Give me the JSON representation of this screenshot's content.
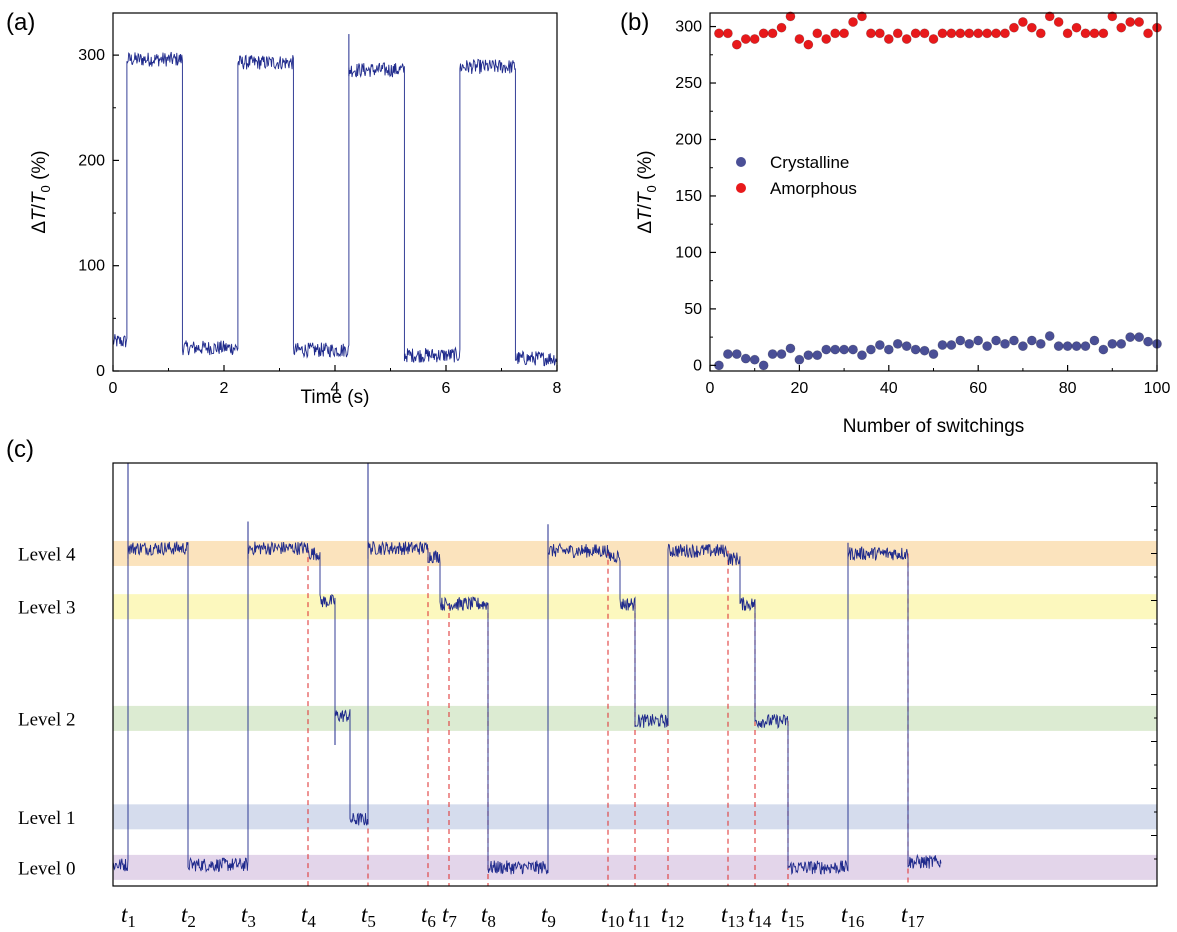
{
  "colors": {
    "trace": "#1f2a8c",
    "amorphous": "#e8191b",
    "crystalline": "#4a4f96",
    "marker_line": "#e03c3c",
    "level4": "#fbe3bd",
    "level3": "#fcf8be",
    "level2": "#dcebd2",
    "level1": "#d5dced",
    "level0": "#e3d5ea"
  },
  "chart_data": [
    {
      "id": "a",
      "type": "line",
      "panel_label": "(a)",
      "xlabel": "Time (s)",
      "ylabel_parts": [
        "Δ",
        "T",
        "/",
        "T",
        "0",
        " (%)"
      ],
      "xlim": [
        0,
        8
      ],
      "ylim": [
        0,
        340
      ],
      "xticks": [
        0,
        2,
        4,
        6,
        8
      ],
      "yticks": [
        0,
        100,
        200,
        300
      ],
      "xtick_labels": [
        "0",
        "2",
        "4",
        "6",
        "8"
      ],
      "ytick_labels": [
        "0",
        "100",
        "200",
        "300"
      ],
      "grid": false,
      "segments": [
        {
          "t0": 0.0,
          "t1": 0.25,
          "y": 28
        },
        {
          "t0": 0.25,
          "t1": 1.25,
          "y": 296
        },
        {
          "t0": 1.25,
          "t1": 2.25,
          "y": 22
        },
        {
          "t0": 2.25,
          "t1": 3.25,
          "y": 293
        },
        {
          "t0": 3.25,
          "t1": 4.25,
          "y": 20
        },
        {
          "t0": 4.25,
          "t1": 5.25,
          "y": 286
        },
        {
          "t0": 5.25,
          "t1": 6.25,
          "y": 15
        },
        {
          "t0": 6.25,
          "t1": 7.25,
          "y": 289
        },
        {
          "t0": 7.25,
          "t1": 8.0,
          "y": 12
        }
      ],
      "spikes": [
        {
          "x": 4.25,
          "y": 320
        }
      ]
    },
    {
      "id": "b",
      "type": "scatter",
      "panel_label": "(b)",
      "xlabel": "Number of switchings",
      "ylabel_parts": [
        "Δ",
        "T",
        "/",
        "T",
        "0",
        " (%)"
      ],
      "xlim": [
        0,
        100
      ],
      "ylim": [
        -5,
        312
      ],
      "xticks": [
        0,
        20,
        40,
        60,
        80,
        100
      ],
      "yticks": [
        0,
        50,
        100,
        150,
        200,
        250,
        300
      ],
      "xtick_labels": [
        "0",
        "20",
        "40",
        "60",
        "80",
        "100"
      ],
      "ytick_labels": [
        "0",
        "50",
        "100",
        "150",
        "200",
        "250",
        "300"
      ],
      "grid": false,
      "legend_position": "center-left",
      "series": [
        {
          "name": "Crystalline",
          "x": [
            2,
            4,
            6,
            8,
            10,
            12,
            14,
            16,
            18,
            20,
            22,
            24,
            26,
            28,
            30,
            32,
            34,
            36,
            38,
            40,
            42,
            44,
            46,
            48,
            50,
            52,
            54,
            56,
            58,
            60,
            62,
            64,
            66,
            68,
            70,
            72,
            74,
            76,
            78,
            80,
            82,
            84,
            86,
            88,
            90,
            92,
            94,
            96,
            98,
            100
          ],
          "y": [
            0,
            10,
            10,
            6,
            5,
            0,
            10,
            10,
            15,
            5,
            9,
            9,
            14,
            14,
            14,
            14,
            9,
            14,
            18,
            14,
            19,
            17,
            14,
            13,
            10,
            18,
            18,
            22,
            19,
            22,
            17,
            22,
            19,
            22,
            17,
            22,
            19,
            26,
            17,
            17,
            17,
            17,
            22,
            14,
            19,
            19,
            25,
            25,
            21,
            19
          ]
        },
        {
          "name": "Amorphous",
          "x": [
            2,
            4,
            6,
            8,
            10,
            12,
            14,
            16,
            18,
            20,
            22,
            24,
            26,
            28,
            30,
            32,
            34,
            36,
            38,
            40,
            42,
            44,
            46,
            48,
            50,
            52,
            54,
            56,
            58,
            60,
            62,
            64,
            66,
            68,
            70,
            72,
            74,
            76,
            78,
            80,
            82,
            84,
            86,
            88,
            90,
            92,
            94,
            96,
            98,
            100
          ],
          "y": [
            294,
            294,
            284,
            289,
            289,
            294,
            294,
            299,
            309,
            289,
            284,
            294,
            289,
            294,
            294,
            304,
            309,
            294,
            294,
            289,
            294,
            289,
            294,
            294,
            289,
            294,
            294,
            294,
            294,
            294,
            294,
            294,
            294,
            299,
            304,
            299,
            294,
            309,
            304,
            294,
            299,
            294,
            294,
            294,
            309,
            299,
            304,
            304,
            294,
            299
          ]
        }
      ]
    },
    {
      "id": "c",
      "type": "line",
      "panel_label": "(c)",
      "levels": [
        {
          "name": "Level 4",
          "value": 4,
          "color_key": "level4"
        },
        {
          "name": "Level 3",
          "value": 3,
          "color_key": "level3"
        },
        {
          "name": "Level 2",
          "value": 2,
          "color_key": "level2"
        },
        {
          "name": "Level 1",
          "value": 1,
          "color_key": "level1"
        },
        {
          "name": "Level 0",
          "value": 0,
          "color_key": "level0"
        }
      ],
      "level_centers": [
        0.0,
        0.95,
        2.8,
        4.9,
        5.9
      ],
      "ylim": [
        -0.35,
        7.6
      ],
      "xlim": [
        0,
        17.4
      ],
      "time_markers": [
        {
          "sym": "t",
          "sub": "1",
          "x": 0.25
        },
        {
          "sym": "t",
          "sub": "2",
          "x": 1.25
        },
        {
          "sym": "t",
          "sub": "3",
          "x": 2.25
        },
        {
          "sym": "t",
          "sub": "4",
          "x": 3.25
        },
        {
          "sym": "t",
          "sub": "5",
          "x": 4.25
        },
        {
          "sym": "t",
          "sub": "6",
          "x": 5.25
        },
        {
          "sym": "t",
          "sub": "7",
          "x": 5.6
        },
        {
          "sym": "t",
          "sub": "8",
          "x": 6.25
        },
        {
          "sym": "t",
          "sub": "9",
          "x": 7.25
        },
        {
          "sym": "t",
          "sub": "10",
          "x": 8.25
        },
        {
          "sym": "t",
          "sub": "11",
          "x": 8.7
        },
        {
          "sym": "t",
          "sub": "12",
          "x": 9.25
        },
        {
          "sym": "t",
          "sub": "13",
          "x": 10.25
        },
        {
          "sym": "t",
          "sub": "14",
          "x": 10.7
        },
        {
          "sym": "t",
          "sub": "15",
          "x": 11.25
        },
        {
          "sym": "t",
          "sub": "16",
          "x": 12.25
        },
        {
          "sym": "t",
          "sub": "17",
          "x": 13.25
        }
      ],
      "dashed_markers": [
        4,
        5,
        6,
        7,
        8,
        10,
        11,
        12,
        13,
        14,
        15,
        17
      ],
      "segments": [
        {
          "t0": 0.0,
          "t1": 0.25,
          "y": 0.05
        },
        {
          "t0": 0.25,
          "t1": 1.25,
          "y": 6.0
        },
        {
          "t0": 1.25,
          "t1": 2.25,
          "y": 0.05
        },
        {
          "t0": 2.25,
          "t1": 3.25,
          "y": 6.0
        },
        {
          "t0": 3.25,
          "t1": 3.45,
          "y": 5.9
        },
        {
          "t0": 3.45,
          "t1": 3.7,
          "y": 5.0
        },
        {
          "t0": 3.7,
          "t1": 3.95,
          "y": 2.85
        },
        {
          "t0": 3.95,
          "t1": 4.25,
          "y": 0.9
        },
        {
          "t0": 4.25,
          "t1": 5.25,
          "y": 6.0
        },
        {
          "t0": 5.25,
          "t1": 5.45,
          "y": 5.85
        },
        {
          "t0": 5.45,
          "t1": 6.25,
          "y": 4.95
        },
        {
          "t0": 6.25,
          "t1": 7.25,
          "y": 0.0
        },
        {
          "t0": 7.25,
          "t1": 8.25,
          "y": 5.95
        },
        {
          "t0": 8.25,
          "t1": 8.45,
          "y": 5.85
        },
        {
          "t0": 8.45,
          "t1": 8.7,
          "y": 4.95
        },
        {
          "t0": 8.7,
          "t1": 9.25,
          "y": 2.75
        },
        {
          "t0": 9.25,
          "t1": 10.25,
          "y": 5.95
        },
        {
          "t0": 10.25,
          "t1": 10.45,
          "y": 5.8
        },
        {
          "t0": 10.45,
          "t1": 10.7,
          "y": 4.95
        },
        {
          "t0": 10.7,
          "t1": 11.25,
          "y": 2.75
        },
        {
          "t0": 11.25,
          "t1": 12.25,
          "y": 0.0
        },
        {
          "t0": 12.25,
          "t1": 13.25,
          "y": 5.9
        },
        {
          "t0": 13.25,
          "t1": 13.8,
          "y": 0.1
        }
      ],
      "spikes": [
        {
          "x": 0.25,
          "y": 7.6
        },
        {
          "x": 2.25,
          "y": 6.5
        },
        {
          "x": 4.25,
          "y": 7.6
        },
        {
          "x": 7.25,
          "y": 6.45
        },
        {
          "x": 12.25,
          "y": 6.1
        }
      ],
      "dips": [
        {
          "x": 3.7,
          "y": 2.3
        }
      ]
    }
  ]
}
